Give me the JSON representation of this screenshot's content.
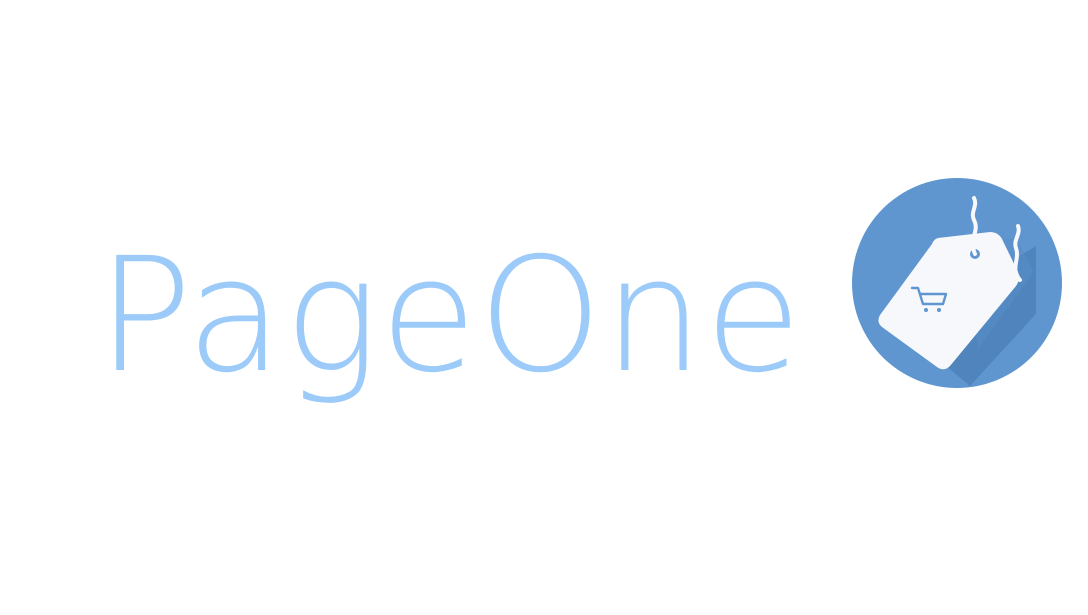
{
  "brand": {
    "name": "PageOne",
    "text_color": "#9ccbf9",
    "logo_icon": "price-tag-cart-icon",
    "logo_circle_color": "#6096d0",
    "logo_shadow_color": "#4f84bc",
    "logo_tag_color": "#f6f8fb",
    "logo_cart_color": "#6096d0"
  }
}
